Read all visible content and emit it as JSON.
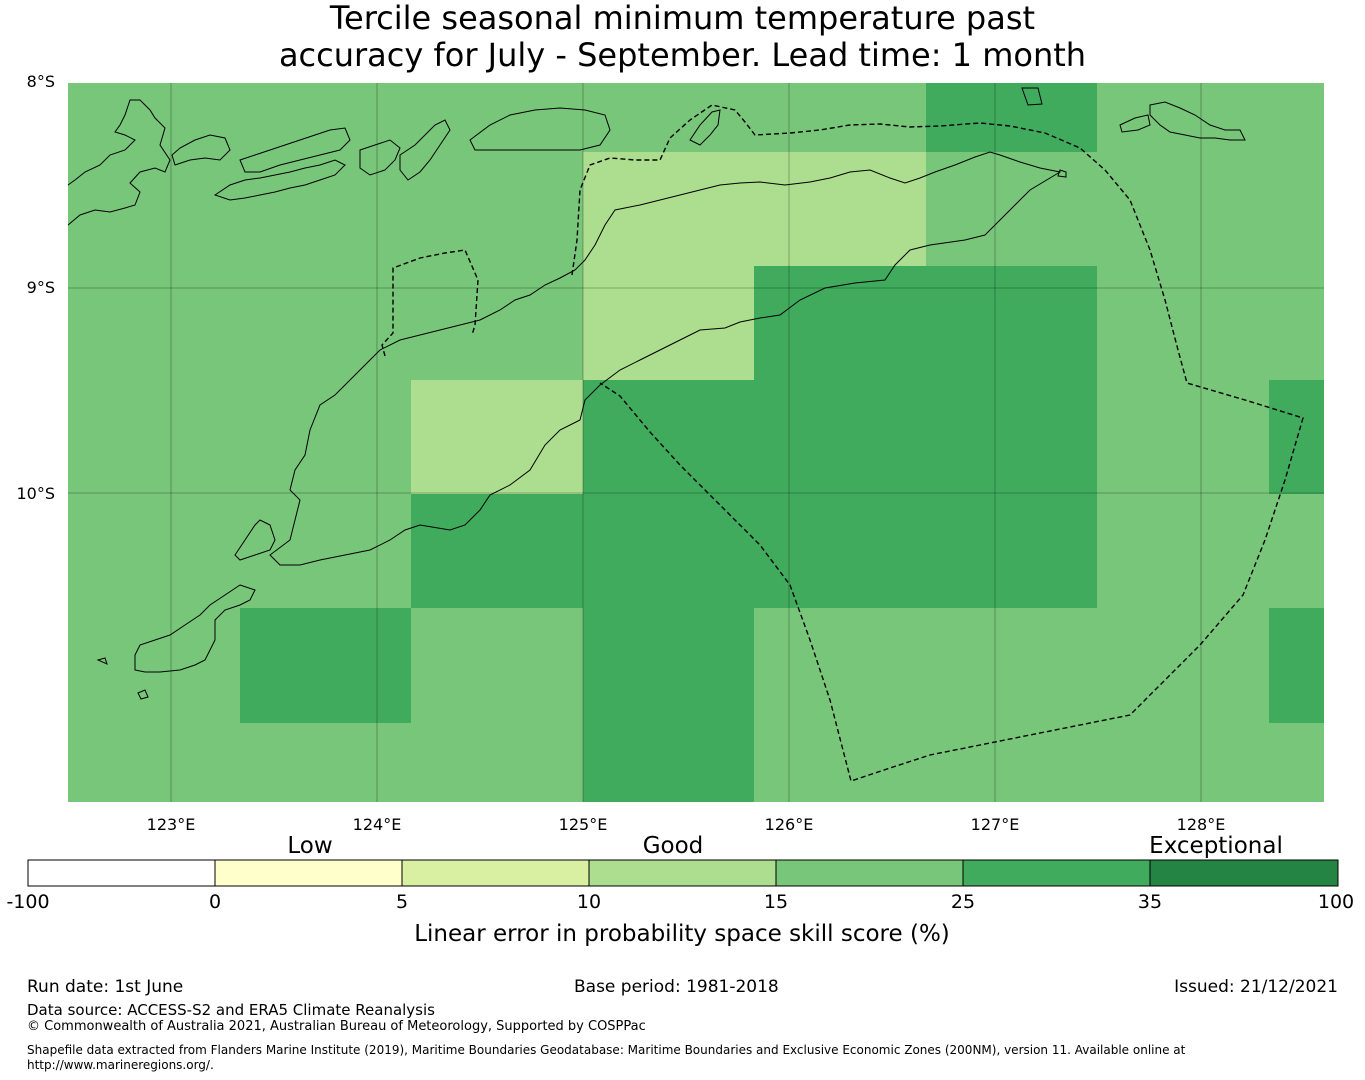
{
  "title_line1": "Tercile seasonal minimum temperature past",
  "title_line2": "accuracy for July - September. Lead time: 1 month",
  "latitude_labels": [
    "8°S",
    "9°S",
    "10°S"
  ],
  "longitude_labels": [
    "123°E",
    "124°E",
    "125°E",
    "126°E",
    "127°E",
    "128°E"
  ],
  "categories": [
    "Low",
    "Good",
    "Exceptional"
  ],
  "colorbar": {
    "ticks": [
      "-100",
      "0",
      "5",
      "10",
      "15",
      "25",
      "35",
      "100"
    ],
    "colors": [
      "#ffffff",
      "#ffffcc",
      "#d9f0a3",
      "#addd8e",
      "#78c679",
      "#41ab5d",
      "#238443"
    ],
    "title": "Linear error in probability space skill score (%)"
  },
  "map_colors": {
    "c10_15": "#addd8e",
    "c15_25": "#78c679",
    "c25_35": "#41ab5d"
  },
  "footer": {
    "run_date": "Run date: 1st June",
    "base_period": "Base period: 1981-2018",
    "issued": "Issued: 21/12/2021",
    "data_source": "Data source: ACCESS-S2 and ERA5 Climate Reanalysis",
    "copyright": "© Commonwealth of Australia 2021, Australian Bureau of Meteorology, Supported by COSPPac",
    "shapefile_line1": "Shapefile data extracted from Flanders Marine Institute (2019), Maritime Boundaries Geodatabase: Maritime Boundaries and Exclusive Economic Zones (200NM), version 11. Available online at",
    "shapefile_line2": "http://www.marineregions.org/."
  }
}
